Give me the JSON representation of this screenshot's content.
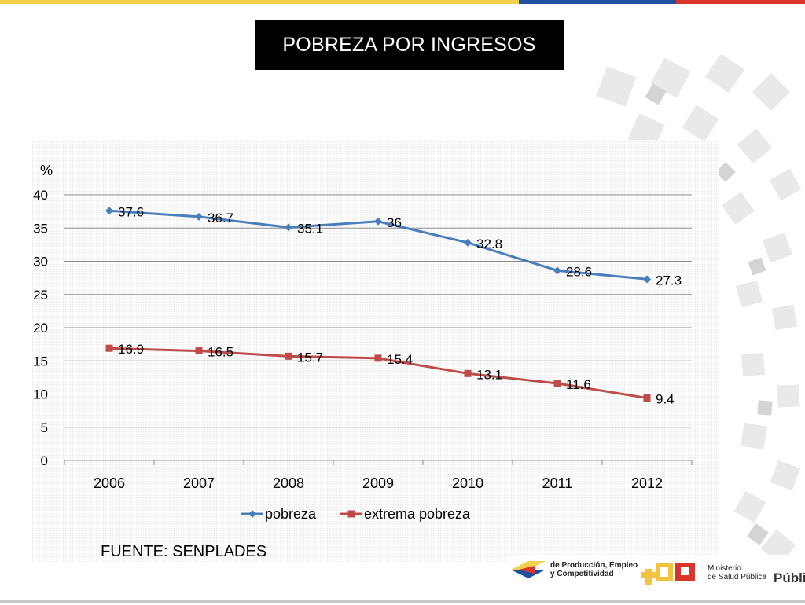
{
  "title": "POBREZA POR INGRESOS",
  "source_note": "FUENTE: SENPLADES",
  "logos": {
    "produccion_line1": "de Producción, Empleo",
    "produccion_line2": "y Competitividad",
    "ministerio_line1": "Ministerio",
    "ministerio_line2": "de Salud Pública",
    "publica": "Públic"
  },
  "colors": {
    "pobreza": "#4a7ebb",
    "extrema_pobreza": "#be4b48",
    "grid": "#8c8c8c"
  },
  "chart_data": {
    "type": "line",
    "title": "",
    "xlabel": "",
    "ylabel": "%",
    "categories": [
      "2006",
      "2007",
      "2008",
      "2009",
      "2010",
      "2011",
      "2012"
    ],
    "ylim": [
      0,
      40
    ],
    "yticks": [
      "0",
      "5",
      "10",
      "15",
      "20",
      "25",
      "30",
      "35",
      "40"
    ],
    "grid": true,
    "legend_position": "bottom",
    "series": [
      {
        "name": "pobreza",
        "marker": "diamond",
        "values": [
          37.6,
          36.7,
          35.1,
          36,
          32.8,
          28.6,
          27.3
        ],
        "labels": [
          "37.6",
          "36.7",
          "35.1",
          "36",
          "32.8",
          "28.6",
          "27.3"
        ]
      },
      {
        "name": "extrema pobreza",
        "marker": "square",
        "values": [
          16.9,
          16.5,
          15.7,
          15.4,
          13.1,
          11.6,
          9.4
        ],
        "labels": [
          "16.9",
          "16.5",
          "15.7",
          "15.4",
          "13.1",
          "11.6",
          "9.4"
        ]
      }
    ]
  }
}
